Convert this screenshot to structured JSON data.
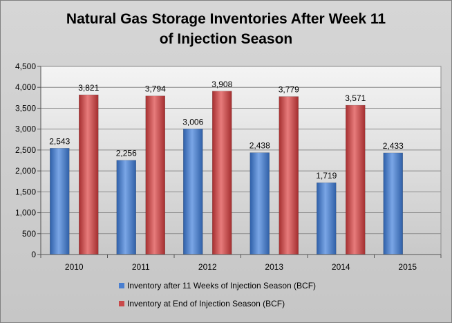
{
  "chart_data": {
    "type": "bar",
    "title": [
      "Natural Gas Storage Inventories After Week 11",
      "of Injection Season"
    ],
    "categories": [
      "2010",
      "2011",
      "2012",
      "2013",
      "2014",
      "2015"
    ],
    "series": [
      {
        "name": "Inventory after 11 Weeks of Injection Season (BCF)",
        "color": "#4a7fd0",
        "values": [
          2543,
          2256,
          3006,
          2438,
          1719,
          2433
        ],
        "labels": [
          "2,543",
          "2,256",
          "3,006",
          "2,438",
          "1,719",
          "2,433"
        ]
      },
      {
        "name": "Inventory at End of Injection Season (BCF)",
        "color": "#c9494a",
        "values": [
          3821,
          3794,
          3908,
          3779,
          3571,
          null
        ],
        "labels": [
          "3,821",
          "3,794",
          "3,908",
          "3,779",
          "3,571",
          null
        ]
      }
    ],
    "ylim": [
      0,
      4500
    ],
    "yticks": [
      0,
      500,
      1000,
      1500,
      2000,
      2500,
      3000,
      3500,
      4000,
      4500
    ],
    "ytick_labels": [
      "0",
      "500",
      "1,000",
      "1,500",
      "2,000",
      "2,500",
      "3,000",
      "3,500",
      "4,000",
      "4,500"
    ],
    "grid": true,
    "legend_position": "bottom"
  }
}
